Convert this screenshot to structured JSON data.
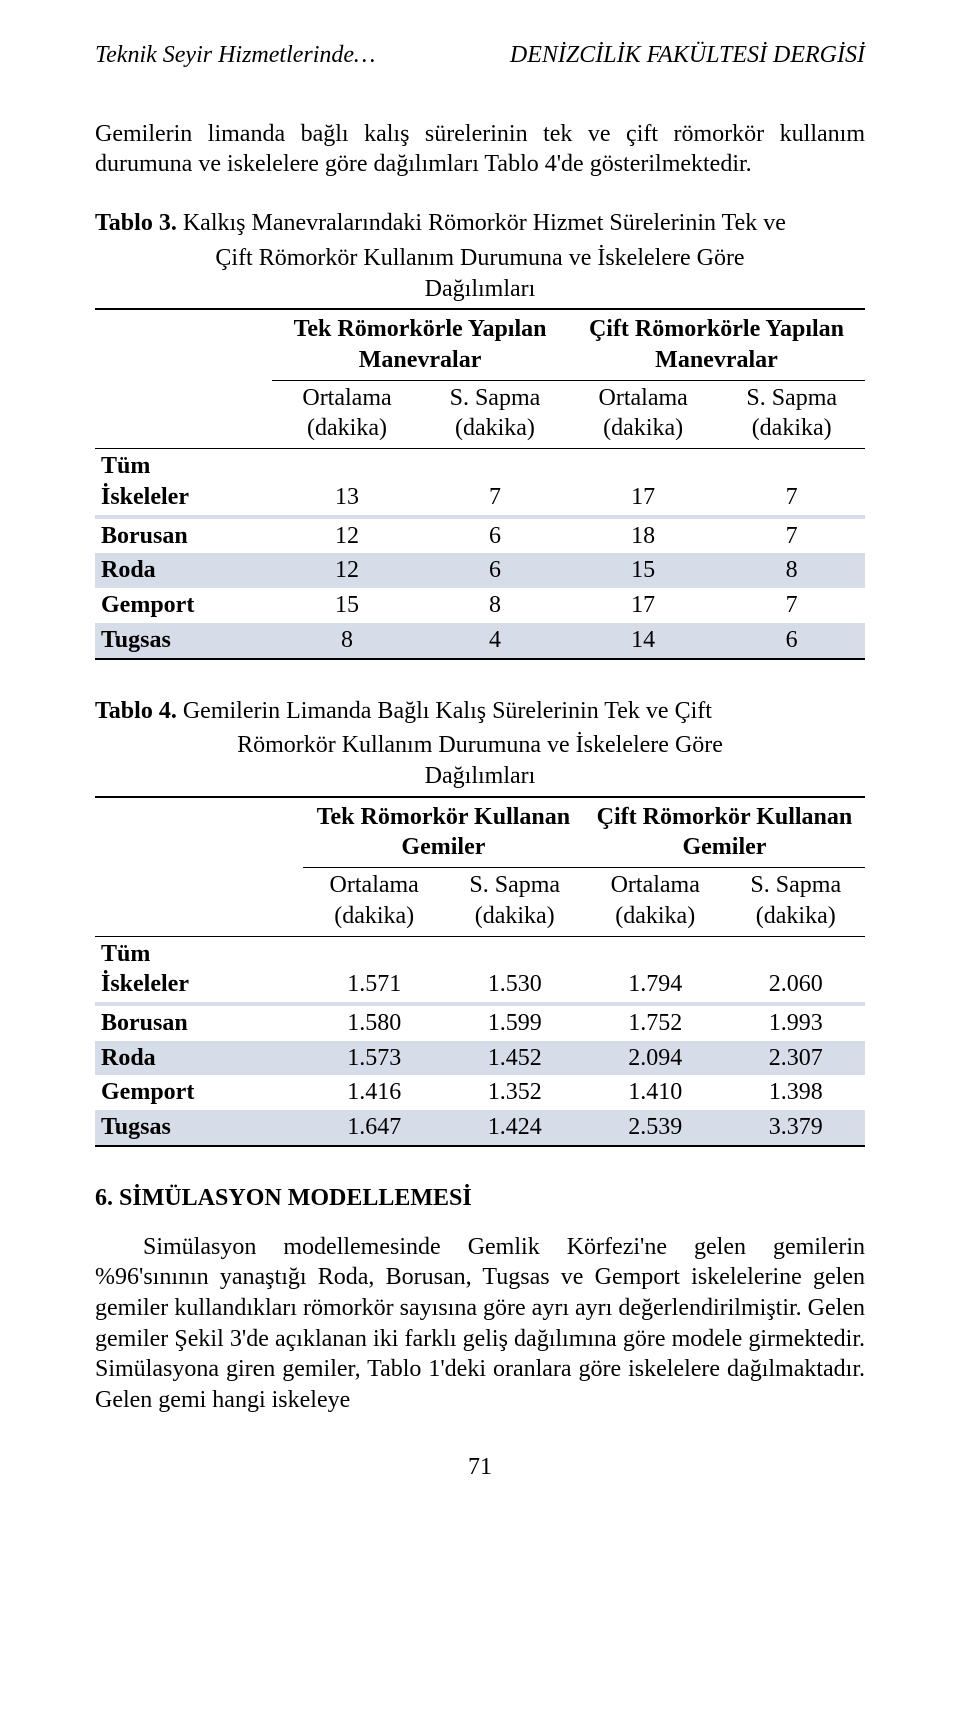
{
  "running_head": {
    "left": "Teknik Seyir Hizmetlerinde…",
    "right": "DENİZCİLİK FAKÜLTESİ DERGİSİ"
  },
  "intro_para": "Gemilerin limanda bağlı kalış sürelerinin tek ve çift römorkör kullanım durumuna ve iskelelere göre dağılımları Tablo 4'de gösterilmektedir.",
  "table3": {
    "caption_lead": "Tablo 3.",
    "caption_rest_line1": " Kalkış Manevralarındaki Römorkör Hizmet Sürelerinin Tek ve",
    "caption_rest_line2": "Çift Römorkör Kullanım Durumuna ve İskelelere Göre",
    "caption_rest_line3": "Dağılımları",
    "group_left": "Tek Römorkörle Yapılan Manevralar",
    "group_right": "Çift Römorkörle Yapılan Manevralar",
    "sub": {
      "c1": "Ortalama (dakika)",
      "c2": "S. Sapma (dakika)",
      "c3": "Ortalama (dakika)",
      "c4": "S. Sapma (dakika)"
    },
    "rows": [
      {
        "label": "Tüm İskeleler",
        "v": [
          "13",
          "7",
          "17",
          "7"
        ],
        "shade": false
      },
      {
        "label": "",
        "v": [
          "",
          "",
          "",
          ""
        ],
        "shade": true
      },
      {
        "label": "Borusan",
        "v": [
          "12",
          "6",
          "18",
          "7"
        ],
        "shade": false
      },
      {
        "label": "Roda",
        "v": [
          "12",
          "6",
          "15",
          "8"
        ],
        "shade": true
      },
      {
        "label": "Gemport",
        "v": [
          "15",
          "8",
          "17",
          "7"
        ],
        "shade": false
      },
      {
        "label": "Tugsas",
        "v": [
          "8",
          "4",
          "14",
          "6"
        ],
        "shade": true
      }
    ]
  },
  "table4": {
    "caption_lead": "Tablo 4.",
    "caption_rest_line1": " Gemilerin Limanda Bağlı Kalış Sürelerinin Tek ve Çift",
    "caption_rest_line2": "Römorkör Kullanım Durumuna ve İskelelere Göre",
    "caption_rest_line3": "Dağılımları",
    "group_left": "Tek Römorkör Kullanan Gemiler",
    "group_right": "Çift Römorkör Kullanan Gemiler",
    "sub": {
      "c1": "Ortalama (dakika)",
      "c2": "S. Sapma (dakika)",
      "c3": "Ortalama (dakika)",
      "c4": "S. Sapma (dakika)"
    },
    "rows": [
      {
        "label": "Tüm İskeleler",
        "v": [
          "1.571",
          "1.530",
          "1.794",
          "2.060"
        ],
        "shade": false
      },
      {
        "label": "",
        "v": [
          "",
          "",
          "",
          ""
        ],
        "shade": true
      },
      {
        "label": "Borusan",
        "v": [
          "1.580",
          "1.599",
          "1.752",
          "1.993"
        ],
        "shade": false
      },
      {
        "label": "Roda",
        "v": [
          "1.573",
          "1.452",
          "2.094",
          "2.307"
        ],
        "shade": true
      },
      {
        "label": "Gemport",
        "v": [
          "1.416",
          "1.352",
          "1.410",
          "1.398"
        ],
        "shade": false
      },
      {
        "label": "Tugsas",
        "v": [
          "1.647",
          "1.424",
          "2.539",
          "3.379"
        ],
        "shade": true
      }
    ]
  },
  "section_head": "6. SİMÜLASYON MODELLEMESİ",
  "body_para": "Simülasyon modellemesinde Gemlik Körfezi'ne gelen gemilerin %96'sınının yanaştığı Roda, Borusan, Tugsas ve Gemport iskelelerine gelen gemiler kullandıkları römorkör sayısına göre ayrı ayrı değerlendirilmiştir. Gelen gemiler Şekil 3'de açıklanan iki farklı geliş dağılımına göre modele girmektedir. Simülasyona giren gemiler, Tablo 1'deki oranlara göre iskelelere dağılmaktadır. Gelen gemi hangi iskeleye",
  "page_number": "71"
}
